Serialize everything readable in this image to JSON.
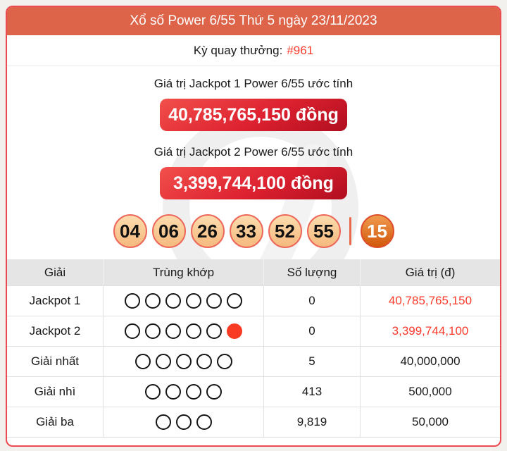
{
  "header": {
    "title": "Xổ số Power 6/55 Thứ 5 ngày 23/11/2023"
  },
  "draw": {
    "label": "Kỳ quay thưởng:",
    "id": "#961"
  },
  "jackpot1": {
    "label": "Giá trị Jackpot 1 Power 6/55 ước tính",
    "value": "40,785,765,150 đồng"
  },
  "jackpot2": {
    "label": "Giá trị Jackpot 2 Power 6/55 ước tính",
    "value": "3,399,744,100 đồng"
  },
  "balls": {
    "main": [
      "04",
      "06",
      "26",
      "33",
      "52",
      "55"
    ],
    "special": "15"
  },
  "table": {
    "headers": [
      "Giải",
      "Trùng khớp",
      "Số lượng",
      "Giá trị (đ)"
    ],
    "rows": [
      {
        "prize": "Jackpot 1",
        "match_open": 6,
        "match_special": false,
        "count": "0",
        "value": "40,785,765,150",
        "value_red": true
      },
      {
        "prize": "Jackpot 2",
        "match_open": 5,
        "match_special": true,
        "count": "0",
        "value": "3,399,744,100",
        "value_red": true
      },
      {
        "prize": "Giải nhất",
        "match_open": 5,
        "match_special": false,
        "count": "5",
        "value": "40,000,000",
        "value_red": false
      },
      {
        "prize": "Giải nhì",
        "match_open": 4,
        "match_special": false,
        "count": "413",
        "value": "500,000",
        "value_red": false
      },
      {
        "prize": "Giải ba",
        "match_open": 3,
        "match_special": false,
        "count": "9,819",
        "value": "50,000",
        "value_red": false
      }
    ]
  },
  "colors": {
    "accent_red": "#fb3b2c",
    "titlebar_bg": "#dd6448",
    "container_border": "#ec4a4e",
    "jackpot_button_top": "#f2504b",
    "jackpot_button_bottom": "#b00e1f",
    "ball_border": "#ed685a",
    "special_ball_bottom": "#d2580b"
  }
}
